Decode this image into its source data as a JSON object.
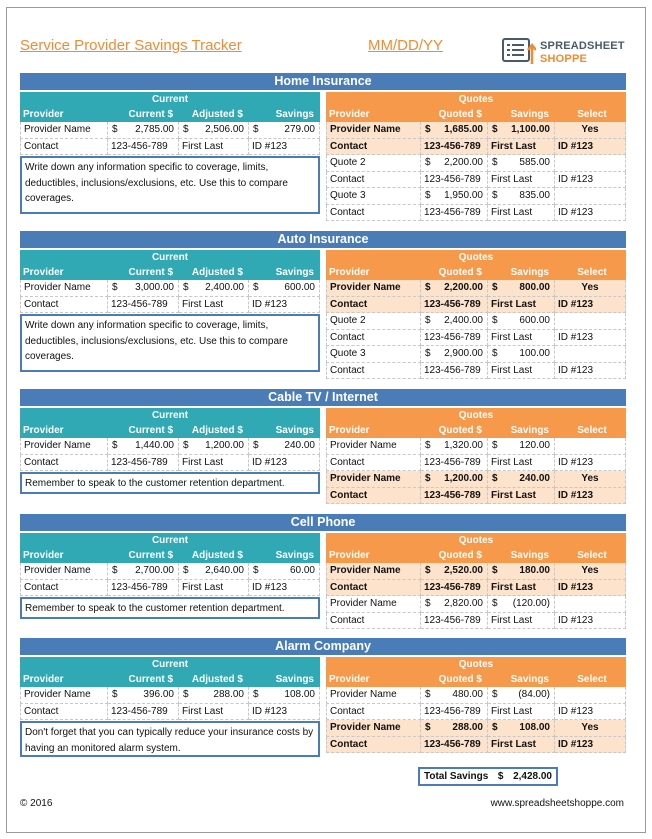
{
  "header": {
    "title": "Service Provider Savings Tracker",
    "date": "MM/DD/YY",
    "logo_line1": "SPREADSHEET",
    "logo_line2": "SHOPPE"
  },
  "labels": {
    "current": "Current",
    "quotes": "Quotes",
    "provider": "Provider",
    "current_dollar": "Current $",
    "adjusted_dollar": "Adjusted $",
    "savings": "Savings",
    "quoted_dollar": "Quoted $",
    "select": "Select"
  },
  "sections": [
    {
      "title": "Home Insurance",
      "left": {
        "provider": "Provider Name",
        "current": "2,785.00",
        "adjusted": "2,506.00",
        "savings": "279.00",
        "contact": "Contact",
        "phone": "123-456-789",
        "name": "First Last",
        "id": "ID #123"
      },
      "notes": "Write down any information specific to coverage, limits, deductibles, inclusions/exclusions, etc.  Use this to compare coverages.",
      "quotes": [
        {
          "provider": "Provider Name",
          "quoted": "1,685.00",
          "savings": "1,100.00",
          "select": "Yes",
          "contact": "Contact",
          "phone": "123-456-789",
          "name": "First Last",
          "id": "ID #123",
          "selected": true
        },
        {
          "provider": "Quote 2",
          "quoted": "2,200.00",
          "savings": "585.00",
          "select": "",
          "contact": "Contact",
          "phone": "123-456-789",
          "name": "First Last",
          "id": "ID #123",
          "selected": false
        },
        {
          "provider": "Quote 3",
          "quoted": "1,950.00",
          "savings": "835.00",
          "select": "",
          "contact": "Contact",
          "phone": "123-456-789",
          "name": "First Last",
          "id": "ID #123",
          "selected": false
        }
      ]
    },
    {
      "title": "Auto Insurance",
      "left": {
        "provider": "Provider Name",
        "current": "3,000.00",
        "adjusted": "2,400.00",
        "savings": "600.00",
        "contact": "Contact",
        "phone": "123-456-789",
        "name": "First Last",
        "id": "ID #123"
      },
      "notes": "Write down any information specific to coverage, limits, deductibles, inclusions/exclusions, etc.  Use this to compare coverages.",
      "quotes": [
        {
          "provider": "Provider Name",
          "quoted": "2,200.00",
          "savings": "800.00",
          "select": "Yes",
          "contact": "Contact",
          "phone": "123-456-789",
          "name": "First Last",
          "id": "ID #123",
          "selected": true
        },
        {
          "provider": "Quote 2",
          "quoted": "2,400.00",
          "savings": "600.00",
          "select": "",
          "contact": "Contact",
          "phone": "123-456-789",
          "name": "First Last",
          "id": "ID #123",
          "selected": false
        },
        {
          "provider": "Quote 3",
          "quoted": "2,900.00",
          "savings": "100.00",
          "select": "",
          "contact": "Contact",
          "phone": "123-456-789",
          "name": "First Last",
          "id": "ID #123",
          "selected": false
        }
      ]
    },
    {
      "title": "Cable TV / Internet",
      "left": {
        "provider": "Provider Name",
        "current": "1,440.00",
        "adjusted": "1,200.00",
        "savings": "240.00",
        "contact": "Contact",
        "phone": "123-456-789",
        "name": "First Last",
        "id": "ID #123"
      },
      "notes": "Remember to speak to the customer retention department.",
      "quotes": [
        {
          "provider": "Provider Name",
          "quoted": "1,320.00",
          "savings": "120.00",
          "select": "",
          "contact": "Contact",
          "phone": "123-456-789",
          "name": "First Last",
          "id": "ID #123",
          "selected": false
        },
        {
          "provider": "Provider Name",
          "quoted": "1,200.00",
          "savings": "240.00",
          "select": "Yes",
          "contact": "Contact",
          "phone": "123-456-789",
          "name": "First Last",
          "id": "ID #123",
          "selected": true
        }
      ]
    },
    {
      "title": "Cell Phone",
      "left": {
        "provider": "Provider Name",
        "current": "2,700.00",
        "adjusted": "2,640.00",
        "savings": "60.00",
        "contact": "Contact",
        "phone": "123-456-789",
        "name": "First Last",
        "id": "ID #123"
      },
      "notes": "Remember to speak to the customer retention department.",
      "quotes": [
        {
          "provider": "Provider Name",
          "quoted": "2,520.00",
          "savings": "180.00",
          "select": "Yes",
          "contact": "Contact",
          "phone": "123-456-789",
          "name": "First Last",
          "id": "ID #123",
          "selected": true
        },
        {
          "provider": "Provider Name",
          "quoted": "2,820.00",
          "savings": "(120.00)",
          "select": "",
          "contact": "Contact",
          "phone": "123-456-789",
          "name": "First Last",
          "id": "ID #123",
          "selected": false
        }
      ]
    },
    {
      "title": "Alarm Company",
      "left": {
        "provider": "Provider Name",
        "current": "396.00",
        "adjusted": "288.00",
        "savings": "108.00",
        "contact": "Contact",
        "phone": "123-456-789",
        "name": "First Last",
        "id": "ID #123"
      },
      "notes": "Don't forget that you can typically reduce your insurance costs by having an monitored alarm system.",
      "quotes": [
        {
          "provider": "Provider Name",
          "quoted": "480.00",
          "savings": "(84.00)",
          "select": "",
          "contact": "Contact",
          "phone": "123-456-789",
          "name": "First Last",
          "id": "ID #123",
          "selected": false
        },
        {
          "provider": "Provider Name",
          "quoted": "288.00",
          "savings": "108.00",
          "select": "Yes",
          "contact": "Contact",
          "phone": "123-456-789",
          "name": "First Last",
          "id": "ID #123",
          "selected": true
        }
      ]
    }
  ],
  "total": {
    "label": "Total Savings",
    "currency": "$",
    "value": "2,428.00"
  },
  "footer": {
    "copyright": "© 2016",
    "url": "www.spreadsheetshoppe.com"
  },
  "colors": {
    "section_blue": "#4a7db8",
    "teal": "#31a9b4",
    "orange": "#f7994a",
    "highlight": "#fde3cc",
    "title_orange": "#f28b30"
  }
}
